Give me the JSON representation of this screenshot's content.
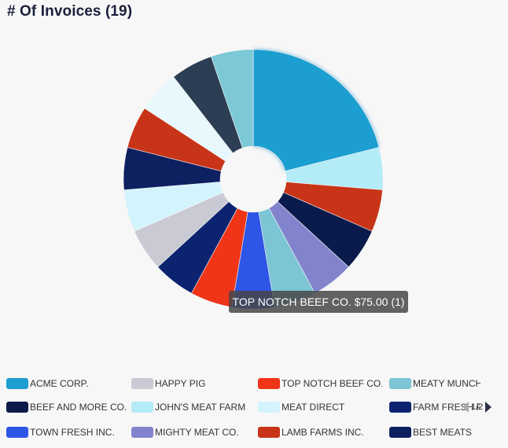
{
  "title": "# Of Invoices (19)",
  "tooltip": "TOP NOTCH BEEF CO. $75.00 (1)",
  "pager": {
    "text": "1/2"
  },
  "legend": [
    {
      "label": "ACME CORP.",
      "color": "#1e9fd0"
    },
    {
      "label": "BEEF AND MORE CO.",
      "color": "#0a1a4a"
    },
    {
      "label": "TOWN FRESH INC.",
      "color": "#2e55e6"
    },
    {
      "label": "HAPPY PIG",
      "color": "#c9cad3"
    },
    {
      "label": "JOHN'S MEAT FARM",
      "color": "#b3ebf7"
    },
    {
      "label": "MIGHTY MEAT CO.",
      "color": "#8184cc"
    },
    {
      "label": "TOP NOTCH BEEF CO.",
      "color": "#ef3418"
    },
    {
      "label": "MEAT DIRECT",
      "color": "#d4f4fd"
    },
    {
      "label": "LAMB FARMS INC.",
      "color": "#c83418"
    },
    {
      "label": "MEATY MUNCHIES",
      "color": "#7cc5d5"
    },
    {
      "label": "FARM FRESH FOODS",
      "color": "#0c2470"
    },
    {
      "label": "BEST MEATS",
      "color": "#0d2060"
    }
  ],
  "chart_data": {
    "type": "pie",
    "donut": true,
    "legend_position": "bottom",
    "slices": [
      {
        "label": "ACME CORP.",
        "value": 4,
        "color": "#1e9fd0"
      },
      {
        "label": "JOHN'S MEAT FARM",
        "value": 1,
        "color": "#b3ebf7"
      },
      {
        "label": "LAMB FARMS INC.",
        "value": 1,
        "color": "#c83418"
      },
      {
        "label": "BEEF AND MORE CO.",
        "value": 1,
        "color": "#0a1a4a"
      },
      {
        "label": "MIGHTY MEAT CO.",
        "value": 1,
        "color": "#8184cc"
      },
      {
        "label": "MEATY MUNCHIES",
        "value": 1,
        "color": "#7cc5d5"
      },
      {
        "label": "TOWN FRESH INC.",
        "value": 1,
        "color": "#2e55e6"
      },
      {
        "label": "TOP NOTCH BEEF CO.",
        "value": 1,
        "color": "#ef3418"
      },
      {
        "label": "FARM FRESH FOODS",
        "value": 1,
        "color": "#0c2470"
      },
      {
        "label": "HAPPY PIG",
        "value": 1,
        "color": "#c9cad3"
      },
      {
        "label": "MEAT DIRECT",
        "value": 1,
        "color": "#d4f4fd"
      },
      {
        "label": "BEST MEATS",
        "value": 1,
        "color": "#0d2060"
      },
      {
        "label": "",
        "value": 1,
        "color": "#c83418"
      },
      {
        "label": "",
        "value": 1,
        "color": "#e8f8fc"
      },
      {
        "label": "",
        "value": 1,
        "color": "#2c3e54"
      },
      {
        "label": "",
        "value": 1,
        "color": "#7cc8d6"
      }
    ]
  }
}
